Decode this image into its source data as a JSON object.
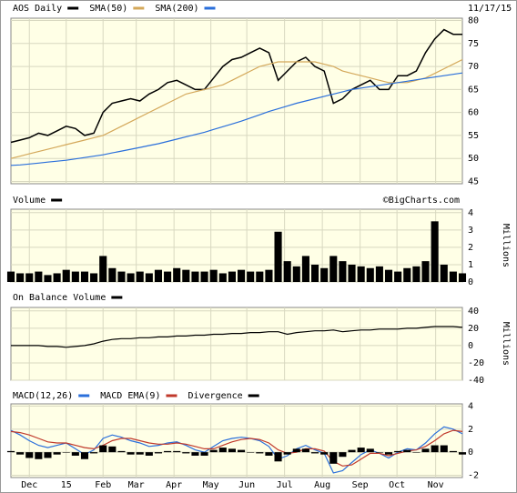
{
  "chart_data": [
    {
      "type": "line",
      "date": "11/17/15",
      "ylim": [
        44.5,
        80.5
      ],
      "yticks": [
        45,
        50,
        55,
        60,
        65,
        70,
        75,
        80
      ],
      "grid": true,
      "xlim": [
        0,
        49
      ],
      "series": [
        {
          "name": "AOS Daily",
          "color": "#000000",
          "values": [
            53.5,
            54,
            54.5,
            55.5,
            55,
            56,
            57,
            56.5,
            55,
            55.5,
            60,
            62,
            62.5,
            63,
            62.5,
            64,
            65,
            66.5,
            67,
            66,
            65,
            65,
            67.5,
            70,
            71.5,
            72,
            73,
            74,
            73,
            67,
            69,
            71,
            72,
            70,
            69,
            62,
            63,
            65,
            66,
            67,
            65,
            65,
            68,
            68,
            69,
            73,
            76,
            78,
            77,
            77
          ]
        },
        {
          "name": "SMA(50)",
          "color": "#d4a85a",
          "values": [
            50,
            50.5,
            51,
            51.5,
            52,
            52.5,
            53,
            53.5,
            54,
            54.5,
            55,
            56,
            57,
            58,
            59,
            60,
            61,
            62,
            63,
            64,
            64.5,
            65,
            65.5,
            66,
            67,
            68,
            69,
            70,
            70.5,
            71,
            71,
            71,
            71,
            71,
            70.5,
            70,
            69,
            68.5,
            68,
            67.5,
            67,
            66.5,
            66.5,
            66.5,
            67,
            67.5,
            68.5,
            69.5,
            70.5,
            71.5
          ]
        },
        {
          "name": "SMA(200)",
          "color": "#2a6fdb",
          "values": [
            48.5,
            48.6,
            48.8,
            49,
            49.2,
            49.4,
            49.6,
            49.9,
            50.2,
            50.5,
            50.8,
            51.2,
            51.6,
            52,
            52.4,
            52.8,
            53.2,
            53.7,
            54.2,
            54.7,
            55.2,
            55.7,
            56.3,
            56.9,
            57.5,
            58.1,
            58.8,
            59.5,
            60.2,
            60.8,
            61.4,
            62,
            62.5,
            63,
            63.5,
            64,
            64.5,
            65,
            65.3,
            65.6,
            65.9,
            66.2,
            66.5,
            66.8,
            67.1,
            67.4,
            67.7,
            68,
            68.3,
            68.6
          ]
        }
      ]
    },
    {
      "type": "bar",
      "annotation": "©BigCharts.com",
      "ylabel": "Millions",
      "ylim": [
        0,
        4.2
      ],
      "yticks": [
        0,
        1,
        2,
        3,
        4
      ],
      "grid": true,
      "xlim": [
        0,
        49
      ],
      "series": [
        {
          "name": "Volume",
          "color": "#000000",
          "values": [
            0.6,
            0.5,
            0.5,
            0.6,
            0.4,
            0.5,
            0.7,
            0.6,
            0.6,
            0.5,
            1.5,
            0.8,
            0.6,
            0.5,
            0.6,
            0.5,
            0.7,
            0.6,
            0.8,
            0.7,
            0.6,
            0.6,
            0.7,
            0.5,
            0.6,
            0.7,
            0.6,
            0.6,
            0.7,
            2.9,
            1.2,
            0.9,
            1.5,
            1.0,
            0.8,
            1.5,
            1.2,
            1.0,
            0.9,
            0.8,
            0.9,
            0.7,
            0.6,
            0.8,
            0.9,
            1.2,
            3.5,
            1.0,
            0.6,
            0.5
          ]
        }
      ]
    },
    {
      "type": "line",
      "ylabel": "Millions",
      "ylim": [
        -40,
        44
      ],
      "yticks": [
        -40,
        -20,
        0,
        20,
        40
      ],
      "grid": true,
      "xlim": [
        0,
        49
      ],
      "series": [
        {
          "name": "On Balance Volume",
          "color": "#000000",
          "values": [
            0,
            0,
            0,
            0,
            -1,
            -1,
            -2,
            -1,
            0,
            2,
            5,
            7,
            8,
            8,
            9,
            9,
            10,
            10,
            11,
            11,
            12,
            12,
            13,
            13,
            14,
            14,
            15,
            15,
            16,
            16,
            13,
            15,
            16,
            17,
            17,
            18,
            16,
            17,
            18,
            18,
            19,
            19,
            19,
            20,
            20,
            21,
            22,
            22,
            22,
            21
          ]
        }
      ]
    },
    {
      "type": "line",
      "ylim": [
        -2.2,
        4.2
      ],
      "yticks": [
        -2,
        0,
        2,
        4
      ],
      "grid": true,
      "xlim": [
        0,
        49
      ],
      "xticks": [
        {
          "value": 2,
          "label": "Dec"
        },
        {
          "value": 6,
          "label": "15"
        },
        {
          "value": 10,
          "label": "Feb"
        },
        {
          "value": 13.6,
          "label": "Mar"
        },
        {
          "value": 17.7,
          "label": "Apr"
        },
        {
          "value": 21.7,
          "label": "May"
        },
        {
          "value": 25.6,
          "label": "Jun"
        },
        {
          "value": 29.7,
          "label": "Jul"
        },
        {
          "value": 33.8,
          "label": "Aug"
        },
        {
          "value": 37.9,
          "label": "Sep"
        },
        {
          "value": 41.9,
          "label": "Oct"
        },
        {
          "value": 46.1,
          "label": "Nov"
        }
      ],
      "series": [
        {
          "name": "MACD(12,26)",
          "color": "#2a6fdb",
          "values": [
            1.9,
            1.5,
            1.0,
            0.6,
            0.4,
            0.6,
            0.8,
            0.3,
            -0.2,
            0.2,
            1.2,
            1.5,
            1.3,
            1.0,
            0.8,
            0.5,
            0.6,
            0.8,
            0.9,
            0.6,
            0.2,
            0.0,
            0.5,
            1.0,
            1.2,
            1.3,
            1.2,
            1.0,
            0.5,
            -0.6,
            -0.3,
            0.3,
            0.6,
            0.2,
            -0.1,
            -1.8,
            -1.6,
            -0.9,
            -0.2,
            0.2,
            -0.1,
            -0.5,
            0.0,
            0.3,
            0.2,
            0.8,
            1.6,
            2.2,
            2.0,
            1.6
          ]
        },
        {
          "name": "MACD EMA(9)",
          "color": "#c0392b",
          "values": [
            1.8,
            1.7,
            1.5,
            1.2,
            0.9,
            0.8,
            0.8,
            0.6,
            0.4,
            0.3,
            0.6,
            1.0,
            1.2,
            1.2,
            1.0,
            0.8,
            0.7,
            0.7,
            0.8,
            0.7,
            0.5,
            0.3,
            0.3,
            0.6,
            0.9,
            1.1,
            1.2,
            1.1,
            0.8,
            0.2,
            -0.1,
            0.0,
            0.3,
            0.3,
            0.1,
            -0.8,
            -1.2,
            -1.1,
            -0.6,
            -0.1,
            -0.1,
            -0.3,
            -0.1,
            0.1,
            0.2,
            0.5,
            1.0,
            1.6,
            1.9,
            1.8
          ]
        },
        {
          "name": "Divergence",
          "color": "#000000",
          "style": "bar",
          "values": [
            0.1,
            -0.2,
            -0.5,
            -0.6,
            -0.5,
            -0.2,
            0,
            -0.3,
            -0.6,
            -0.1,
            0.6,
            0.5,
            0.1,
            -0.2,
            -0.2,
            -0.3,
            -0.1,
            0.1,
            0.1,
            -0.1,
            -0.3,
            -0.3,
            0.2,
            0.4,
            0.3,
            0.2,
            0,
            -0.1,
            -0.3,
            -0.8,
            -0.2,
            0.3,
            0.3,
            -0.1,
            -0.2,
            -1.0,
            -0.4,
            0.2,
            0.4,
            0.3,
            0,
            -0.2,
            0.1,
            0.2,
            0,
            0.3,
            0.6,
            0.6,
            0.1,
            -0.2
          ]
        }
      ]
    }
  ]
}
